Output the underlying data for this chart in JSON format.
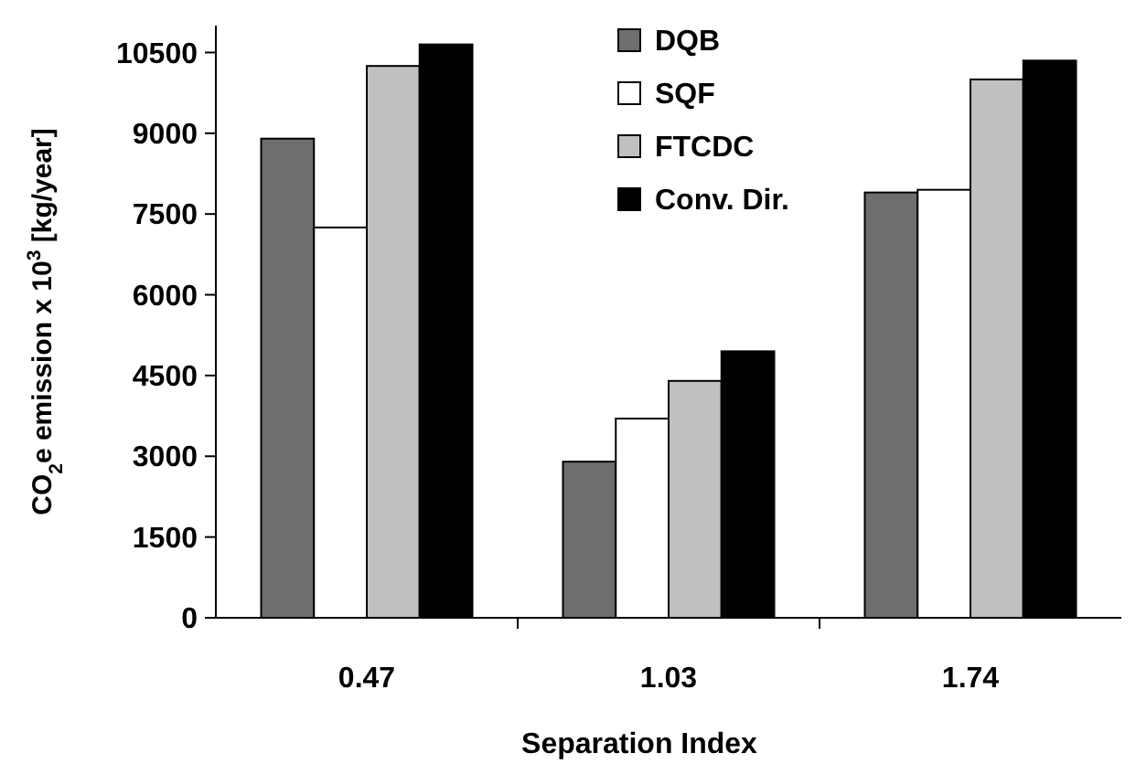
{
  "chart_data": {
    "type": "bar",
    "xlabel": "Separation Index",
    "ylabel": "CO$_{2}$e emission x 10$^{3}$ [kg/year]",
    "categories": [
      "0.47",
      "1.03",
      "1.74"
    ],
    "series": [
      {
        "name": "DQB",
        "color": "#6e6e6e",
        "values": [
          8900,
          2900,
          7900
        ]
      },
      {
        "name": "SQF",
        "color": "#ffffff",
        "values": [
          7250,
          3700,
          7950
        ]
      },
      {
        "name": "FTCDC",
        "color": "#c0c0c0",
        "values": [
          10250,
          4400,
          10000
        ]
      },
      {
        "name": "Conv. Dir.",
        "color": "#000000",
        "values": [
          10650,
          4950,
          10350
        ]
      }
    ],
    "ylim": [
      0,
      11000
    ],
    "yticks": [
      0,
      1500,
      3000,
      4500,
      6000,
      7500,
      9000,
      10500
    ],
    "grid": false,
    "legend": "top right"
  }
}
